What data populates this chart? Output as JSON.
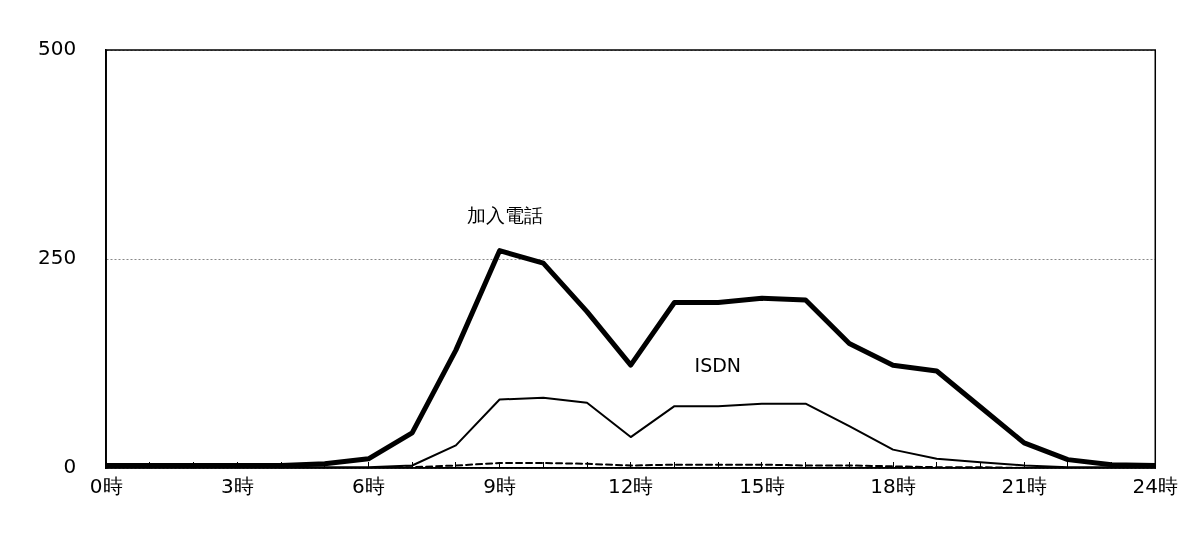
{
  "chart_data": {
    "type": "line",
    "x": [
      0,
      1,
      2,
      3,
      4,
      5,
      6,
      7,
      8,
      9,
      10,
      11,
      12,
      13,
      14,
      15,
      16,
      17,
      18,
      19,
      20,
      21,
      22,
      23,
      24
    ],
    "series": [
      {
        "name": "加入電話",
        "color": "#000000",
        "values": [
          3,
          3,
          3,
          3,
          3,
          5,
          11,
          42,
          141,
          260,
          245,
          187,
          123,
          198,
          198,
          203,
          201,
          149,
          123,
          116,
          73,
          30,
          10,
          4,
          3
        ]
      },
      {
        "name": "ISDN",
        "color": "#000000",
        "values": [
          1,
          1,
          1,
          1,
          1,
          1,
          1,
          3,
          27,
          82,
          84,
          78,
          37,
          74,
          74,
          77,
          77,
          50,
          22,
          11,
          7,
          3,
          1,
          1,
          1
        ]
      },
      {
        "color": "#000000",
        "line_style": "dashed",
        "values": [
          0,
          0,
          0,
          0,
          0,
          0,
          0,
          1,
          3,
          6,
          6,
          5,
          3,
          4,
          4,
          4,
          3,
          3,
          2,
          1,
          1,
          0,
          0,
          0,
          0
        ]
      }
    ],
    "xlim": [
      0,
      24
    ],
    "xticks": [
      {
        "value": 0,
        "label": "0時"
      },
      {
        "value": 1,
        "label": null
      },
      {
        "value": 2,
        "label": null
      },
      {
        "value": 3,
        "label": "3時"
      },
      {
        "value": 4,
        "label": null
      },
      {
        "value": 5,
        "label": null
      },
      {
        "value": 6,
        "label": "6時"
      },
      {
        "value": 7,
        "label": null
      },
      {
        "value": 8,
        "label": null
      },
      {
        "value": 9,
        "label": "9時"
      },
      {
        "value": 10,
        "label": null
      },
      {
        "value": 11,
        "label": null
      },
      {
        "value": 12,
        "label": "12時"
      },
      {
        "value": 13,
        "label": null
      },
      {
        "value": 14,
        "label": null
      },
      {
        "value": 15,
        "label": "15時"
      },
      {
        "value": 16,
        "label": null
      },
      {
        "value": 17,
        "label": null
      },
      {
        "value": 18,
        "label": "18時"
      },
      {
        "value": 19,
        "label": null
      },
      {
        "value": 20,
        "label": null
      },
      {
        "value": 21,
        "label": "21時"
      },
      {
        "value": 22,
        "label": null
      },
      {
        "value": 23,
        "label": null
      },
      {
        "value": 24,
        "label": "24時"
      }
    ],
    "ylim": [
      0,
      500
    ],
    "yticks": [
      0,
      250,
      500
    ],
    "grid": "y",
    "legend": false,
    "marker": "none",
    "line_style": "solid"
  }
}
